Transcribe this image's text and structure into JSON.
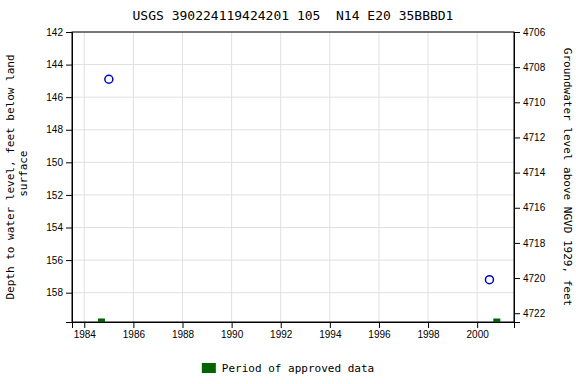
{
  "chart_data": {
    "type": "scatter",
    "title": "USGS 390224119424201 105  N14 E20 35BBBD1",
    "ylabel": "Depth to water level, feet below land\n surface",
    "y2label": "Groundwater level above NGVD 1929, feet",
    "xlim": [
      1983.5,
      2001.5
    ],
    "xticks": [
      1984,
      1986,
      1988,
      1990,
      1992,
      1994,
      1996,
      1998,
      2000
    ],
    "ylim": [
      159.8,
      142
    ],
    "yticks": [
      142,
      144,
      146,
      148,
      150,
      152,
      154,
      156,
      158
    ],
    "y2lim": [
      4722.5,
      4706
    ],
    "y2ticks": [
      4706,
      4708,
      4710,
      4712,
      4714,
      4716,
      4718,
      4720,
      4722
    ],
    "grid": true,
    "legend": "bottom",
    "series": [
      {
        "color": "#0000cc",
        "marker": "circle",
        "x": [
          1985.0,
          2000.5
        ],
        "values": [
          144.9,
          157.2
        ]
      },
      {
        "name": "Period of approved data",
        "color": "#006400",
        "marker": "square",
        "x": [
          1984.7,
          2000.8
        ],
        "values": [
          159.8,
          159.8
        ]
      }
    ]
  }
}
